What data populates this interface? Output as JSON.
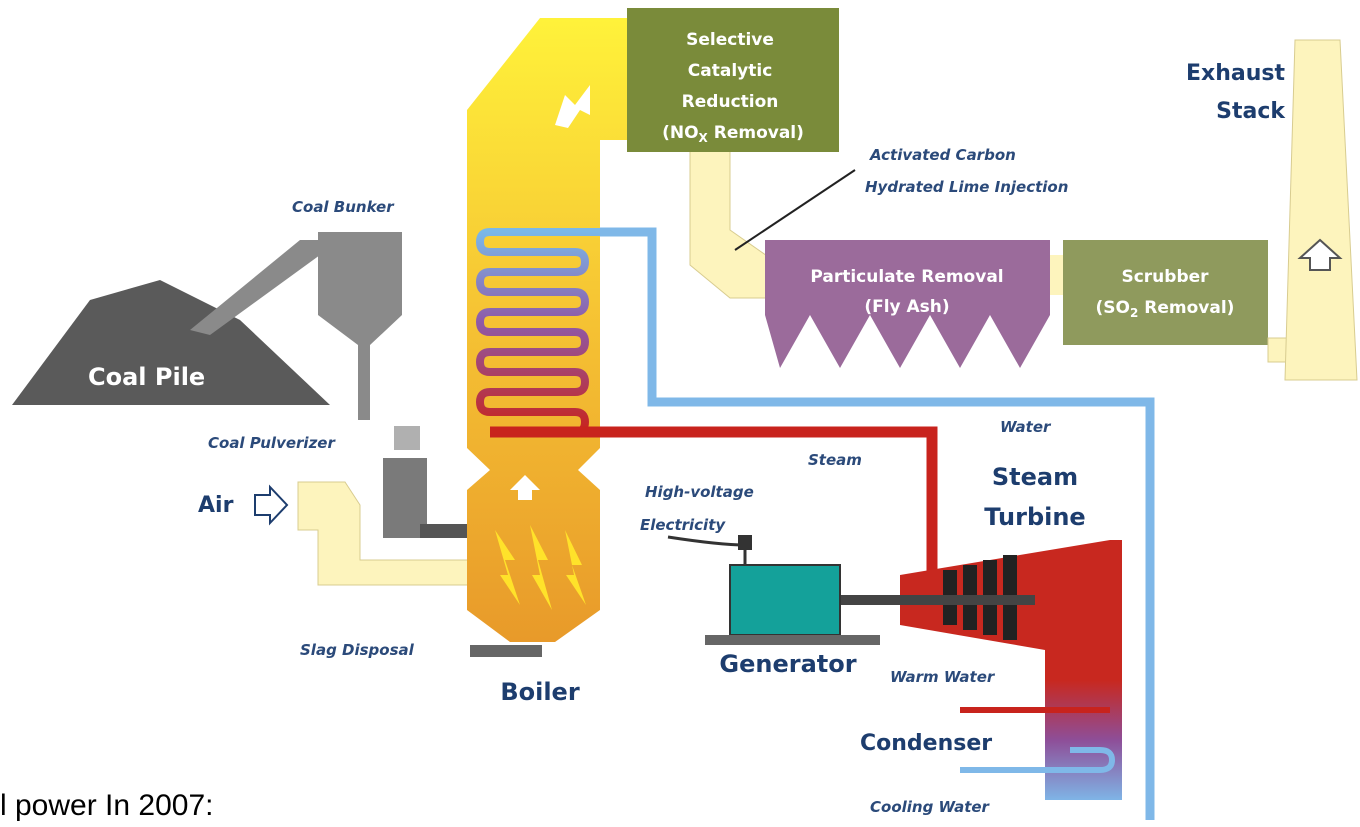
{
  "scr": {
    "lines": [
      "Selective",
      "Catalytic",
      "Reduction"
    ],
    "last": [
      "(NO",
      "X",
      " Removal)"
    ]
  },
  "exhaust_stack": [
    "Exhaust",
    "Stack"
  ],
  "injection": [
    "Activated Carbon",
    "Hydrated Lime Injection"
  ],
  "coal_bunker": "Coal Bunker",
  "coal_pile": "Coal Pile",
  "coal_pulverizer": "Coal Pulverizer",
  "air": "Air",
  "particulate": [
    "Particulate Removal",
    "(Fly Ash)"
  ],
  "scrubber": {
    "title": "Scrubber",
    "last": [
      "(SO",
      "2",
      " Removal)"
    ]
  },
  "water": "Water",
  "steam": "Steam",
  "steam_turbine": [
    "Steam",
    "Turbine"
  ],
  "electricity": [
    "High-voltage",
    "Electricity"
  ],
  "generator": "Generator",
  "slag_disposal": "Slag Disposal",
  "boiler": "Boiler",
  "warm_water": "Warm Water",
  "condenser": "Condenser",
  "cooling_water": "Cooling Water",
  "caption": "l power In 2007:"
}
